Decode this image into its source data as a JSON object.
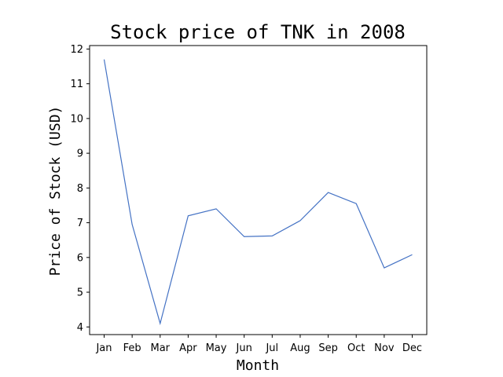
{
  "chart_data": {
    "type": "line",
    "title": "Stock price of TNK in 2008",
    "xlabel": "Month",
    "ylabel": "Price of Stock (USD)",
    "categories": [
      "Jan",
      "Feb",
      "Mar",
      "Apr",
      "May",
      "Jun",
      "Jul",
      "Aug",
      "Sep",
      "Oct",
      "Nov",
      "Dec"
    ],
    "series": [
      {
        "values": [
          11.7,
          6.95,
          4.1,
          7.2,
          7.4,
          6.6,
          6.62,
          7.06,
          7.87,
          7.55,
          5.7,
          6.08
        ]
      }
    ],
    "ylim": [
      3.78,
      12.1
    ],
    "yticks": [
      4,
      5,
      6,
      7,
      8,
      9,
      10,
      11,
      12
    ],
    "grid": false,
    "legend": "none",
    "line_color": "#4472c4"
  }
}
